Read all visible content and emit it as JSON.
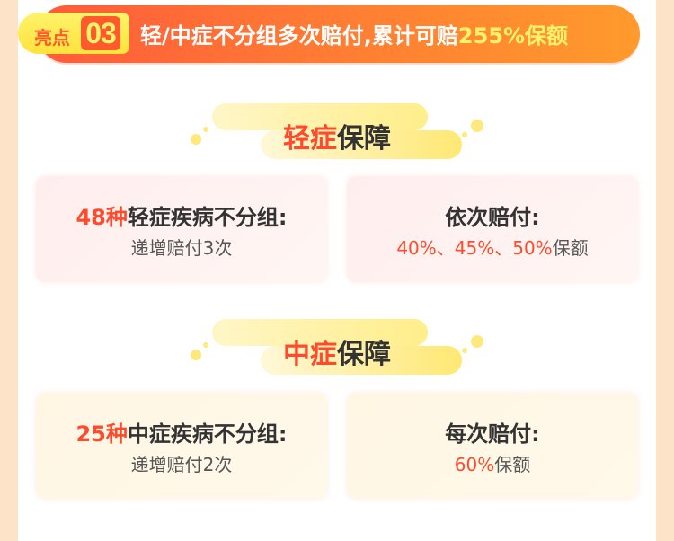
{
  "header": {
    "badge_label": "亮点",
    "badge_number": "03",
    "title_main": "轻/中症不分组多次赔付,累计可赔",
    "title_highlight": "255%保额"
  },
  "sections": [
    {
      "title_red": "轻症",
      "title_dark": "保障",
      "cards": [
        {
          "line1_red": "48种",
          "line1_dark": "轻症疾病不分组:",
          "line2_red": "",
          "line2_dark": "递增赔付3次"
        },
        {
          "line1_red": "",
          "line1_dark": "依次赔付:",
          "line2_red": "40%、45%、50%",
          "line2_dark": "保额"
        }
      ]
    },
    {
      "title_red": "中症",
      "title_dark": "保障",
      "cards": [
        {
          "line1_red": "25种",
          "line1_dark": "中症疾病不分组:",
          "line2_red": "",
          "line2_dark": "递增赔付2次"
        },
        {
          "line1_red": "",
          "line1_dark": "每次赔付:",
          "line2_red": "60%",
          "line2_dark": "保额"
        }
      ]
    }
  ],
  "colors": {
    "accent_red": "#ff4b2b",
    "accent_yellow": "#fff36b",
    "banner_orange": "#ff7a34"
  }
}
